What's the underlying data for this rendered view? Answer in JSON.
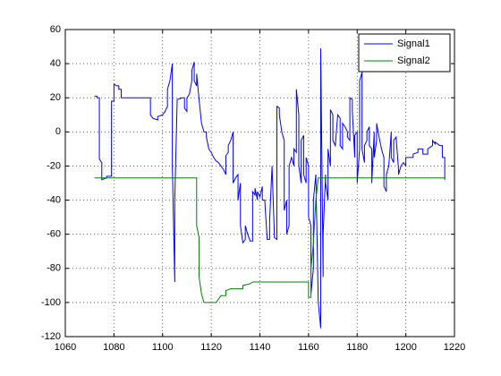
{
  "chart_data": {
    "type": "line",
    "xlim": [
      1060,
      1220
    ],
    "xticks": [
      1060,
      1080,
      1100,
      1120,
      1140,
      1160,
      1180,
      1200,
      1220
    ],
    "ylim": [
      -120,
      60
    ],
    "yticks": [
      -120,
      -100,
      -80,
      -60,
      -40,
      -20,
      0,
      20,
      40,
      60
    ],
    "grid": true,
    "legend": "northeast",
    "series": [
      {
        "name": "Signal1",
        "color": "#0000ff",
        "x": [
          1072,
          1073,
          1073,
          1074,
          1074,
          1075,
          1075,
          1077,
          1077,
          1079,
          1079,
          1080,
          1080,
          1081,
          1082,
          1082,
          1083,
          1083,
          1095,
          1095,
          1096,
          1098,
          1098,
          1100,
          1101,
          1102,
          1102,
          1103,
          1104,
          1104,
          1105,
          1105,
          1106,
          1108,
          1109,
          1109,
          1110,
          1110,
          1111,
          1112,
          1112,
          1113,
          1113,
          1114,
          1114,
          1115,
          1116,
          1117,
          1118,
          1118,
          1119,
          1120,
          1121,
          1122,
          1123,
          1124,
          1125,
          1126,
          1126,
          1127,
          1127,
          1128,
          1129,
          1129,
          1130,
          1131,
          1131,
          1132,
          1132,
          1133,
          1134,
          1134,
          1135,
          1136,
          1137,
          1137,
          1138,
          1138,
          1139,
          1139,
          1140,
          1141,
          1141,
          1142,
          1143,
          1144,
          1144,
          1145,
          1146,
          1147,
          1147,
          1147,
          1148,
          1148,
          1149,
          1150,
          1150,
          1151,
          1151,
          1152,
          1152,
          1153,
          1154,
          1154,
          1155,
          1155,
          1156,
          1156,
          1157,
          1157,
          1158,
          1158,
          1159,
          1159,
          1160,
          1160,
          1161,
          1161,
          1162,
          1162,
          1163,
          1164,
          1165,
          1165,
          1166,
          1166,
          1167,
          1167,
          1168,
          1168,
          1169,
          1169,
          1170,
          1170,
          1171,
          1172,
          1173,
          1173,
          1174,
          1174,
          1175,
          1176,
          1176,
          1177,
          1177,
          1178,
          1178,
          1179,
          1179,
          1180,
          1180,
          1181,
          1181,
          1182,
          1182,
          1183,
          1183,
          1184,
          1184,
          1185,
          1185,
          1186,
          1186,
          1187,
          1187,
          1188,
          1188,
          1189,
          1190,
          1191,
          1191,
          1192,
          1192,
          1193,
          1194,
          1194,
          1195,
          1195,
          1196,
          1197,
          1197,
          1198,
          1199,
          1200,
          1200,
          1203,
          1203,
          1205,
          1205,
          1207,
          1207,
          1209,
          1209,
          1211,
          1211,
          1212,
          1212,
          1214,
          1215,
          1215,
          1216,
          1216
        ],
        "values": [
          21,
          21,
          20,
          20,
          -16,
          -18,
          -28,
          -27,
          -26,
          -26,
          18,
          18,
          28,
          27,
          27,
          25,
          25,
          20,
          20,
          10,
          8,
          7,
          9,
          10,
          12,
          15,
          25,
          30,
          40,
          -20,
          -88,
          -40,
          19,
          20,
          20,
          14,
          12,
          20,
          22,
          30,
          36,
          41,
          30,
          27,
          34,
          19,
          5,
          0,
          0,
          -3,
          -10,
          -12,
          -15,
          -17,
          -18,
          -20,
          -22,
          -25,
          -14,
          -12,
          -8,
          -5,
          0,
          -30,
          -27,
          -25,
          -40,
          -30,
          -55,
          -65,
          -63,
          -55,
          -60,
          -64,
          -64,
          -35,
          -37,
          -33,
          -40,
          -35,
          -38,
          -32,
          -40,
          -40,
          -63,
          -63,
          -52,
          -20,
          -62,
          -63,
          -60,
          15,
          14,
          10,
          0,
          -5,
          -46,
          -40,
          -60,
          -55,
          -20,
          -15,
          -20,
          -10,
          -12,
          25,
          10,
          -20,
          -30,
          -5,
          -2,
          -25,
          -30,
          -15,
          -20,
          -50,
          -55,
          -95,
          -80,
          -40,
          -25,
          -100,
          -115,
          49,
          -85,
          -60,
          -25,
          -30,
          -40,
          -10,
          -20,
          13,
          10,
          -5,
          -8,
          10,
          8,
          -8,
          -10,
          5,
          3,
          0,
          -3,
          -5,
          20,
          19,
          12,
          -15,
          -2,
          0,
          -30,
          -10,
          30,
          35,
          -10,
          -18,
          -8,
          -5,
          0,
          3,
          -8,
          -10,
          -30,
          0,
          -15,
          -5,
          5,
          -3,
          -10,
          -15,
          -32,
          -35,
          -25,
          -20,
          0,
          -15,
          -18,
          -5,
          -3,
          -22,
          -25,
          -20,
          -18,
          -20,
          -15,
          -15,
          -13,
          -12,
          -10,
          -10,
          -13,
          -13,
          -10,
          -8,
          -5,
          -7,
          -6,
          -8,
          -8,
          -15,
          -15,
          -28
        ]
      },
      {
        "name": "Signal2",
        "color": "#008000",
        "x": [
          1072,
          1114,
          1114,
          1115,
          1115,
          1116,
          1117,
          1122,
          1123,
          1124,
          1126,
          1126,
          1128,
          1133,
          1133,
          1136,
          1137,
          1160,
          1160,
          1161,
          1161,
          1162,
          1163,
          1164,
          1216
        ],
        "values": [
          -27,
          -27,
          -55,
          -62,
          -85,
          -95,
          -100,
          -100,
          -98,
          -96,
          -96,
          -93,
          -92,
          -92,
          -90,
          -89,
          -88,
          -88,
          -97,
          -97,
          -80,
          -65,
          -40,
          -27,
          -27
        ]
      }
    ]
  }
}
